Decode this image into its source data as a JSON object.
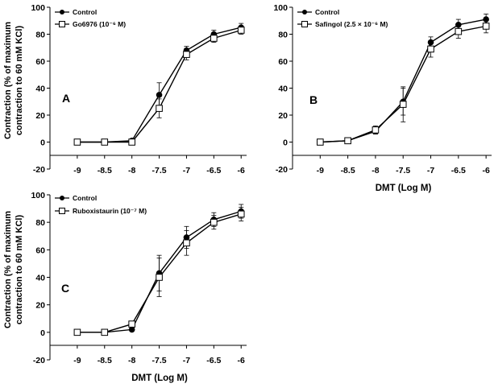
{
  "figure": {
    "y_axis_label_line1": "Contraction (% of maximum",
    "y_axis_label_line2": "contraction to 60 mM KCl)"
  },
  "chart_data": [
    {
      "type": "line",
      "panel": "A",
      "xlabel": "",
      "ylabel": "Contraction (% of maximum contraction to 60 mM KCl)",
      "ylim": [
        -20,
        100
      ],
      "xlim": [
        -9.5,
        -5.9
      ],
      "x": [
        -9,
        -8.5,
        -8,
        -7.5,
        -7,
        -6.5,
        -6
      ],
      "x_tick_labels": [
        "-9",
        "-8.5",
        "-8",
        "-7.5",
        "-7",
        "-6.5",
        "-6"
      ],
      "y_ticks": [
        -20,
        0,
        20,
        40,
        60,
        80,
        100
      ],
      "y_tick_labels": [
        "-20",
        "0",
        "20",
        "40",
        "60",
        "80",
        "100"
      ],
      "legend_position": "top-left",
      "series": [
        {
          "name": "Control",
          "marker": "filled-circle",
          "values": [
            0,
            0,
            1,
            35,
            68,
            80,
            85
          ],
          "errors": [
            0,
            0,
            1,
            9,
            3,
            3,
            3
          ]
        },
        {
          "name": "Go6976 (10⁻⁶ M)",
          "marker": "open-square",
          "values": [
            0,
            0,
            0,
            25,
            65,
            77,
            83
          ],
          "errors": [
            0,
            0,
            0,
            7,
            4,
            3,
            3
          ]
        }
      ]
    },
    {
      "type": "line",
      "panel": "B",
      "xlabel": "DMT (Log M)",
      "ylabel": "",
      "ylim": [
        -20,
        100
      ],
      "xlim": [
        -9.5,
        -5.9
      ],
      "x": [
        -9,
        -8.5,
        -8,
        -7.5,
        -7,
        -6.5,
        -6
      ],
      "x_tick_labels": [
        "-9",
        "-8.5",
        "-8",
        "-7.5",
        "-7",
        "-6.5",
        "-6"
      ],
      "y_ticks": [
        -20,
        0,
        20,
        40,
        60,
        80,
        100
      ],
      "y_tick_labels": [
        "-20",
        "0",
        "20",
        "40",
        "60",
        "80",
        "100"
      ],
      "legend_position": "top-left",
      "series": [
        {
          "name": "Control",
          "marker": "filled-circle",
          "values": [
            0,
            1,
            8,
            30,
            74,
            87,
            91
          ],
          "errors": [
            0,
            0,
            2,
            10,
            4,
            4,
            4
          ]
        },
        {
          "name": "Safingol (2.5 × 10⁻⁶ M)",
          "marker": "open-square",
          "values": [
            0,
            1,
            9,
            28,
            69,
            82,
            86
          ],
          "errors": [
            0,
            0,
            3,
            13,
            6,
            5,
            5
          ]
        }
      ]
    },
    {
      "type": "line",
      "panel": "C",
      "xlabel": "DMT (Log M)",
      "ylabel": "Contraction (% of maximum contraction to 60 mM KCl)",
      "ylim": [
        -20,
        100
      ],
      "xlim": [
        -9.5,
        -5.9
      ],
      "x": [
        -9,
        -8.5,
        -8,
        -7.5,
        -7,
        -6.5,
        -6
      ],
      "x_tick_labels": [
        "-9",
        "-8.5",
        "-8",
        "-7.5",
        "-7",
        "-6.5",
        "-6"
      ],
      "y_ticks": [
        -20,
        0,
        20,
        40,
        60,
        80,
        100
      ],
      "y_tick_labels": [
        "-20",
        "0",
        "20",
        "40",
        "60",
        "80",
        "100"
      ],
      "legend_position": "top-left",
      "series": [
        {
          "name": "Control",
          "marker": "filled-circle",
          "values": [
            0,
            0,
            2,
            43,
            69,
            82,
            88
          ],
          "errors": [
            0,
            0,
            1,
            13,
            8,
            5,
            5
          ]
        },
        {
          "name": "Ruboxistaurin (10⁻⁷ M)",
          "marker": "open-square",
          "values": [
            0,
            0,
            6,
            40,
            65,
            80,
            86
          ],
          "errors": [
            0,
            0,
            2,
            14,
            9,
            5,
            5
          ]
        }
      ]
    }
  ]
}
